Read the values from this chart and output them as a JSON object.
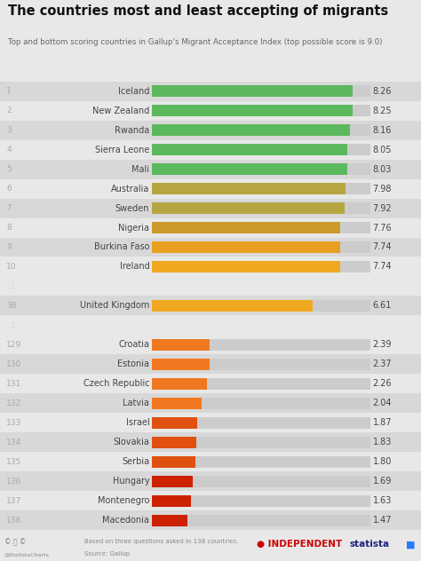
{
  "title": "The countries most and least accepting of migrants",
  "subtitle": "Top and bottom scoring countries in Gallup's Migrant Acceptance Index (top possible score is 9.0)",
  "background_color": "#e8e8e8",
  "rows": [
    {
      "rank": "1",
      "country": "Iceland",
      "value": 8.26,
      "color": "#5cb85c",
      "group": "top"
    },
    {
      "rank": "2",
      "country": "New Zealand",
      "value": 8.25,
      "color": "#5cb85c",
      "group": "top"
    },
    {
      "rank": "3",
      "country": "Rwanda",
      "value": 8.16,
      "color": "#5cb85c",
      "group": "top"
    },
    {
      "rank": "4",
      "country": "Sierra Leone",
      "value": 8.05,
      "color": "#5cb85c",
      "group": "top"
    },
    {
      "rank": "5",
      "country": "Mali",
      "value": 8.03,
      "color": "#5cb85c",
      "group": "top"
    },
    {
      "rank": "6",
      "country": "Australia",
      "value": 7.98,
      "color": "#b5a642",
      "group": "top"
    },
    {
      "rank": "7",
      "country": "Sweden",
      "value": 7.92,
      "color": "#b5a642",
      "group": "top"
    },
    {
      "rank": "8",
      "country": "Nigeria",
      "value": 7.76,
      "color": "#cc9a2a",
      "group": "top"
    },
    {
      "rank": "9",
      "country": "Burkina Faso",
      "value": 7.74,
      "color": "#e8a020",
      "group": "top"
    },
    {
      "rank": "10",
      "country": "Ireland",
      "value": 7.74,
      "color": "#f0a820",
      "group": "top"
    },
    {
      "rank": "38",
      "country": "United Kingdom",
      "value": 6.61,
      "color": "#f0a820",
      "group": "mid"
    },
    {
      "rank": "129",
      "country": "Croatia",
      "value": 2.39,
      "color": "#f07820",
      "group": "bot"
    },
    {
      "rank": "130",
      "country": "Estonia",
      "value": 2.37,
      "color": "#f07820",
      "group": "bot"
    },
    {
      "rank": "131",
      "country": "Czech Republic",
      "value": 2.26,
      "color": "#f07820",
      "group": "bot"
    },
    {
      "rank": "132",
      "country": "Latvia",
      "value": 2.04,
      "color": "#f07820",
      "group": "bot"
    },
    {
      "rank": "133",
      "country": "Israel",
      "value": 1.87,
      "color": "#e05010",
      "group": "bot"
    },
    {
      "rank": "134",
      "country": "Slovakia",
      "value": 1.83,
      "color": "#e05010",
      "group": "bot"
    },
    {
      "rank": "135",
      "country": "Serbia",
      "value": 1.8,
      "color": "#e05010",
      "group": "bot"
    },
    {
      "rank": "136",
      "country": "Hungary",
      "value": 1.69,
      "color": "#cc2200",
      "group": "bot"
    },
    {
      "rank": "137",
      "country": "Montenegro",
      "value": 1.63,
      "color": "#cc2200",
      "group": "bot"
    },
    {
      "rank": "138",
      "country": "Macedonia",
      "value": 1.47,
      "color": "#cc2200",
      "group": "bot"
    }
  ],
  "max_value": 9.0,
  "rank_color": "#aaaaaa",
  "text_color": "#444444",
  "row_colors": [
    "#d8d8d8",
    "#e8e8e8"
  ],
  "bar_bg_color": "#cccccc"
}
